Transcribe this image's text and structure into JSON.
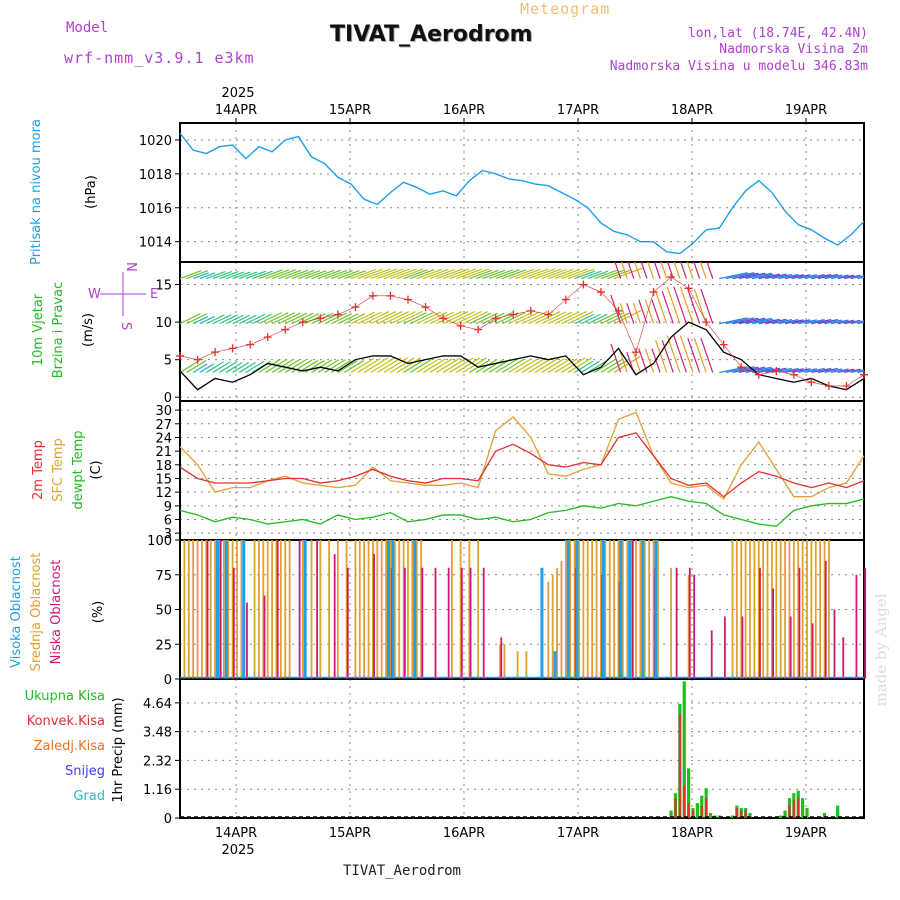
{
  "header": {
    "model_label": "Model",
    "model_name": "wrf-nmm_v3.9.1  e3km",
    "title": "TIVAT_Aerodrom",
    "subtitle": "Meteogram",
    "lonlat": "lon,lat (18.74E, 42.4N)",
    "elevation": "Nadmorska Visina 2m",
    "model_elevation": "Nadmorska Visina u modelu 346.83m",
    "footer": "TIVAT_Aerodrom",
    "watermark": "made by Angel"
  },
  "colors": {
    "pressure": "#1e9fe8",
    "wind_purple": "#b040d0",
    "green": "#22bb22",
    "red": "#e03030",
    "orange": "#e0a030",
    "magenta": "#d01870",
    "blue": "#1e9fe8",
    "snow": "#4040ff",
    "grad": "#20c0c0",
    "lightorange": "#f07020"
  },
  "chart_data": [
    {
      "type": "line",
      "panel": "pressure",
      "ylabel_main": "Pritisak na nivou mora",
      "ylabel_unit": "(hPa)",
      "ylim": [
        1012.8,
        1021.0
      ],
      "yticks": [
        1014,
        1016,
        1018,
        1020
      ],
      "x_top_labels": [
        "14APR",
        "15APR",
        "16APR",
        "17APR",
        "18APR",
        "19APR"
      ],
      "year_top": "2025",
      "series": [
        {
          "name": "Pressure",
          "x": [
            0,
            3,
            6,
            9,
            12,
            15,
            18,
            21,
            24,
            27,
            30,
            33,
            36,
            39,
            42,
            45,
            48,
            51,
            54,
            57,
            60,
            63,
            66,
            69,
            72,
            75,
            78,
            81,
            84,
            87,
            90,
            93,
            96,
            99,
            102,
            105,
            108,
            111,
            114,
            117,
            120,
            123,
            126,
            129,
            132,
            135,
            138,
            141,
            144,
            147,
            150,
            153,
            156
          ],
          "values": [
            1020.4,
            1019.4,
            1019.2,
            1019.6,
            1019.7,
            1018.9,
            1019.6,
            1019.3,
            1020.0,
            1020.2,
            1019.0,
            1018.6,
            1017.8,
            1017.4,
            1016.5,
            1016.2,
            1016.9,
            1017.5,
            1017.2,
            1016.8,
            1017.0,
            1016.7,
            1017.6,
            1018.2,
            1018.0,
            1017.7,
            1017.6,
            1017.4,
            1017.3,
            1016.9,
            1016.5,
            1016.0,
            1015.1,
            1014.6,
            1014.4,
            1014.0,
            1014.0,
            1013.4,
            1013.3,
            1013.9,
            1014.7,
            1014.8,
            1016.0,
            1017.0,
            1017.6,
            1016.9,
            1015.8,
            1015.0,
            1014.7,
            1014.2,
            1013.8,
            1014.4,
            1015.2
          ]
        }
      ]
    },
    {
      "type": "line",
      "panel": "wind",
      "ylabel_main": "10m Vjetar",
      "ylabel_sub": "Brzina i Pravac",
      "ylabel_unit": "(m/s)",
      "compass": {
        "n": "N",
        "w": "W",
        "e": "E",
        "s": "S"
      },
      "ylim": [
        -0.5,
        18.0
      ],
      "yticks": [
        0,
        5,
        10,
        15
      ],
      "series": [
        {
          "name": "wind speed",
          "x": [
            0,
            4,
            8,
            12,
            16,
            20,
            24,
            28,
            32,
            36,
            40,
            44,
            48,
            52,
            56,
            60,
            64,
            68,
            72,
            76,
            80,
            84,
            88,
            92,
            96,
            100,
            104,
            108,
            112,
            116,
            120,
            124,
            128,
            132,
            136,
            140,
            144,
            148,
            152,
            156
          ],
          "values": [
            3.5,
            1.0,
            2.5,
            2.0,
            3.0,
            4.5,
            4.0,
            3.5,
            4.0,
            3.5,
            5.0,
            5.5,
            5.5,
            4.5,
            5.0,
            5.5,
            5.5,
            4.0,
            4.5,
            5.0,
            5.5,
            5.0,
            5.5,
            3.0,
            4.0,
            6.5,
            3.0,
            4.5,
            8.0,
            10.0,
            9.0,
            6.0,
            5.0,
            3.0,
            2.5,
            2.0,
            2.5,
            1.5,
            1.0,
            2.5
          ]
        },
        {
          "name": "gust",
          "x": [
            0,
            4,
            8,
            12,
            16,
            20,
            24,
            28,
            32,
            36,
            40,
            44,
            48,
            52,
            56,
            60,
            64,
            68,
            72,
            76,
            80,
            84,
            88,
            92,
            96,
            100,
            104,
            108,
            112,
            116,
            120,
            124,
            128,
            132,
            136,
            140,
            144,
            148,
            152,
            156
          ],
          "values": [
            5.5,
            5.0,
            6.0,
            6.5,
            7.0,
            8.0,
            9.0,
            10.0,
            10.5,
            11.0,
            12.0,
            13.5,
            13.5,
            13.0,
            12.0,
            10.5,
            9.5,
            9.0,
            10.5,
            11.0,
            11.5,
            11.0,
            13.0,
            15.0,
            14.0,
            11.5,
            6.0,
            14.0,
            16.0,
            14.5,
            10.0,
            7.0,
            4.0,
            3.0,
            3.5,
            3.0,
            2.0,
            1.5,
            1.5,
            3.0
          ]
        }
      ]
    },
    {
      "type": "line",
      "panel": "temperature",
      "ylabel_a": "2m Temp",
      "ylabel_b": "SFC Temp",
      "ylabel_c": "dewpt Temp",
      "ylabel_unit": "(C)",
      "ylim": [
        1.5,
        32.0
      ],
      "yticks": [
        3,
        6,
        9,
        12,
        15,
        18,
        21,
        24,
        27,
        30
      ],
      "series": [
        {
          "name": "2m Temp",
          "x": [
            0,
            4,
            8,
            12,
            16,
            20,
            24,
            28,
            32,
            36,
            40,
            44,
            48,
            52,
            56,
            60,
            64,
            68,
            72,
            76,
            80,
            84,
            88,
            92,
            96,
            100,
            104,
            108,
            112,
            116,
            120,
            124,
            128,
            132,
            136,
            140,
            144,
            148,
            152,
            156
          ],
          "values": [
            17.5,
            15.0,
            14.0,
            14.0,
            14.0,
            14.5,
            15.0,
            15.0,
            14.0,
            14.5,
            15.5,
            17.0,
            15.5,
            14.5,
            14.0,
            15.0,
            15.0,
            14.5,
            21.0,
            22.5,
            20.5,
            18.0,
            17.5,
            18.5,
            18.0,
            24.0,
            25.0,
            20.0,
            15.0,
            13.5,
            14.0,
            11.0,
            14.0,
            16.5,
            15.5,
            14.0,
            13.0,
            14.0,
            13.0,
            14.5
          ]
        },
        {
          "name": "SFC Temp",
          "x": [
            0,
            4,
            8,
            12,
            16,
            20,
            24,
            28,
            32,
            36,
            40,
            44,
            48,
            52,
            56,
            60,
            64,
            68,
            72,
            76,
            80,
            84,
            88,
            92,
            96,
            100,
            104,
            108,
            112,
            116,
            120,
            124,
            128,
            132,
            136,
            140,
            144,
            148,
            152,
            156
          ],
          "values": [
            22.0,
            18.0,
            12.0,
            13.0,
            13.0,
            14.5,
            15.5,
            14.0,
            13.5,
            13.0,
            13.5,
            17.5,
            14.5,
            14.0,
            13.5,
            13.5,
            14.0,
            13.0,
            25.5,
            28.5,
            24.0,
            16.0,
            15.5,
            17.0,
            18.0,
            28.0,
            29.5,
            20.0,
            14.0,
            13.0,
            13.5,
            10.5,
            18.0,
            23.0,
            17.0,
            11.0,
            11.0,
            13.0,
            14.0,
            20.0
          ]
        },
        {
          "name": "dewpt Temp",
          "x": [
            0,
            4,
            8,
            12,
            16,
            20,
            24,
            28,
            32,
            36,
            40,
            44,
            48,
            52,
            56,
            60,
            64,
            68,
            72,
            76,
            80,
            84,
            88,
            92,
            96,
            100,
            104,
            108,
            112,
            116,
            120,
            124,
            128,
            132,
            136,
            140,
            144,
            148,
            152,
            156
          ],
          "values": [
            8.0,
            7.0,
            5.5,
            6.5,
            6.0,
            5.0,
            5.5,
            6.0,
            5.0,
            7.0,
            6.0,
            6.5,
            7.5,
            5.5,
            6.0,
            7.0,
            7.0,
            6.0,
            6.5,
            5.5,
            6.0,
            7.5,
            8.0,
            9.0,
            8.5,
            9.5,
            9.0,
            10.0,
            11.0,
            10.0,
            9.5,
            7.0,
            6.0,
            5.0,
            4.5,
            8.0,
            9.0,
            9.5,
            9.5,
            10.5
          ]
        }
      ]
    },
    {
      "type": "bar",
      "panel": "clouds",
      "ylabel_a": "Visoka Oblacnost",
      "ylabel_b": "Srednja Oblacnost",
      "ylabel_c": "Niska Oblacnost",
      "ylabel_unit": "(%)",
      "ylim": [
        0,
        100
      ],
      "yticks": [
        0,
        25,
        50,
        75,
        100
      ],
      "series": [
        {
          "name": "Srednja",
          "x": [
            1,
            2,
            3,
            4,
            5,
            6,
            7,
            8,
            9,
            10,
            11,
            12,
            13,
            14,
            17,
            18,
            19,
            20,
            21,
            22,
            23,
            24,
            25,
            28,
            30,
            32,
            34,
            36,
            38,
            40,
            41,
            42,
            43,
            44,
            45,
            46,
            47,
            48,
            49,
            50,
            51,
            52,
            53,
            54,
            55,
            62,
            64,
            66,
            68,
            73,
            74,
            77,
            79,
            84,
            85,
            86,
            87,
            88,
            89,
            90,
            91,
            92,
            93,
            94,
            95,
            96,
            97,
            98,
            99,
            100,
            101,
            102,
            103,
            104,
            105,
            106,
            107,
            108,
            109,
            112,
            116,
            126,
            127,
            128,
            129,
            130,
            131,
            132,
            133,
            134,
            135,
            136,
            137,
            138,
            139,
            140,
            141,
            142,
            143,
            144,
            145,
            146,
            147,
            148
          ],
          "values": [
            100,
            100,
            100,
            100,
            100,
            100,
            100,
            100,
            100,
            100,
            100,
            100,
            100,
            100,
            100,
            100,
            100,
            100,
            100,
            100,
            100,
            100,
            100,
            100,
            100,
            100,
            100,
            100,
            100,
            100,
            100,
            100,
            100,
            100,
            100,
            100,
            100,
            100,
            100,
            100,
            100,
            100,
            100,
            100,
            100,
            100,
            100,
            100,
            100,
            25,
            25,
            20,
            20,
            70,
            75,
            80,
            85,
            100,
            100,
            100,
            100,
            100,
            100,
            100,
            100,
            100,
            100,
            100,
            100,
            100,
            100,
            100,
            100,
            100,
            100,
            100,
            100,
            100,
            100,
            80,
            75,
            100,
            100,
            100,
            100,
            100,
            100,
            100,
            100,
            100,
            100,
            100,
            100,
            100,
            100,
            100,
            100,
            100,
            100,
            100,
            100,
            100,
            100,
            100
          ]
        },
        {
          "name": "Niska",
          "x": [
            6,
            9,
            12,
            15,
            19,
            22,
            27,
            31,
            35,
            38,
            44,
            48,
            51,
            55,
            58,
            61,
            64,
            66,
            69,
            73,
            90,
            96,
            100,
            103,
            108,
            113,
            116,
            117,
            121,
            124,
            128,
            132,
            135,
            139,
            141,
            144,
            147,
            149,
            151,
            154,
            156
          ],
          "values": [
            100,
            100,
            80,
            55,
            60,
            100,
            100,
            100,
            90,
            80,
            90,
            80,
            80,
            80,
            80,
            80,
            80,
            80,
            80,
            30,
            80,
            75,
            70,
            100,
            80,
            80,
            80,
            75,
            35,
            45,
            45,
            80,
            65,
            45,
            80,
            40,
            85,
            50,
            30,
            75,
            80
          ]
        },
        {
          "name": "Visoka",
          "x": [
            8,
            10,
            14,
            28,
            47,
            48,
            53,
            82,
            85,
            88,
            90,
            96,
            100,
            102,
            105,
            108
          ],
          "values": [
            100,
            100,
            100,
            100,
            100,
            100,
            100,
            80,
            20,
            100,
            100,
            100,
            100,
            100,
            100,
            100
          ]
        }
      ]
    },
    {
      "type": "bar",
      "panel": "precip",
      "legend": [
        "Ukupna Kisa",
        "Konvek.Kisa",
        "Zaledj.Kisa",
        "Snijeg",
        "Grad"
      ],
      "ylabel": "1hr Precip (mm)",
      "ylim": [
        0,
        5.6
      ],
      "yticks": [
        0,
        1.16,
        2.32,
        3.48,
        4.64
      ],
      "ytick_labels": [
        "0",
        "1.16",
        "2.32",
        "3.48",
        "4.64"
      ],
      "x_bottom_labels": [
        "14APR",
        "15APR",
        "16APR",
        "17APR",
        "18APR",
        "19APR"
      ],
      "year_bottom": "2025",
      "series": [
        {
          "name": "Ukupna Kisa",
          "x": [
            26,
            112,
            113,
            114,
            115,
            116,
            117,
            118,
            119,
            120,
            121,
            122,
            123,
            126,
            127,
            128,
            129,
            130,
            137,
            138,
            139,
            140,
            141,
            142,
            143,
            147,
            150
          ],
          "values": [
            0.05,
            0.3,
            1.0,
            4.6,
            5.5,
            2.0,
            0.4,
            0.6,
            0.9,
            1.2,
            0.2,
            0.1,
            0.1,
            0.1,
            0.5,
            0.4,
            0.4,
            0.2,
            0.1,
            0.3,
            0.8,
            1.0,
            1.1,
            0.8,
            0.4,
            0.2,
            0.5
          ]
        },
        {
          "name": "Konvek.Kisa",
          "x": [
            113,
            114,
            115,
            116,
            117,
            119,
            120,
            127,
            128,
            129,
            139,
            140,
            141
          ],
          "values": [
            0.8,
            4.2,
            1.3,
            0.6,
            0.3,
            0.5,
            0.8,
            0.4,
            0.3,
            0.3,
            0.5,
            0.7,
            0.8
          ]
        }
      ]
    }
  ]
}
